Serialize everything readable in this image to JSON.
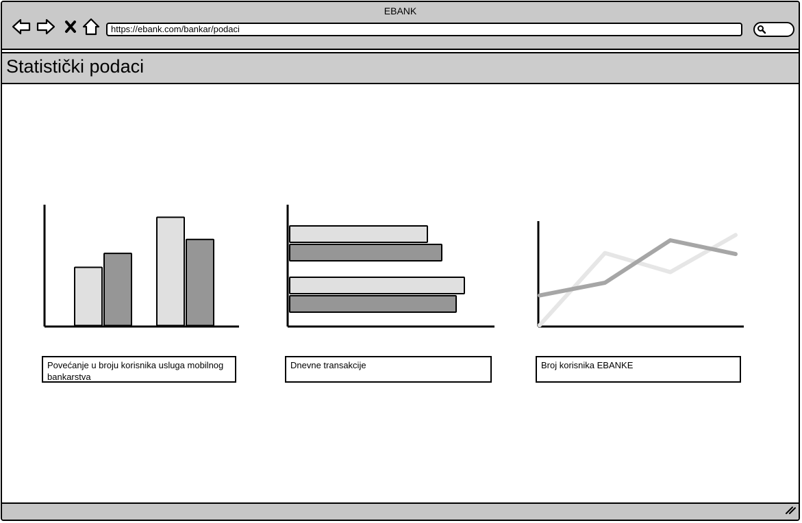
{
  "browser": {
    "window_title": "EBANK",
    "url": "https://ebank.com/bankar/podaci"
  },
  "icons": {
    "back": "back-arrow-icon",
    "forward": "forward-arrow-icon",
    "stop": "close-icon",
    "home": "home-icon",
    "search": "search-icon",
    "resize": "resize-grip-icon"
  },
  "page": {
    "title": "Statistički podaci"
  },
  "captions": [
    "Povećanje u broju korisnika usluga mobilnog bankarstva",
    "Dnevne transakcije",
    "Broj korisnika EBANKE"
  ],
  "colors": {
    "series_light": "#e0e0e0",
    "series_dark": "#969696",
    "line_light": "#e6e6e6",
    "line_dark": "#a6a6a6",
    "chrome": "#c9c9c9"
  },
  "chart_data": [
    {
      "type": "bar",
      "title": "",
      "categories": [
        "1",
        "2"
      ],
      "series": [
        {
          "values": [
            50,
            93
          ]
        },
        {
          "values": [
            62,
            74
          ]
        }
      ],
      "ylim": [
        0,
        100
      ],
      "grid": false
    },
    {
      "type": "bar",
      "orientation": "horizontal",
      "title": "",
      "categories": [
        "1",
        "2"
      ],
      "series": [
        {
          "values": [
            67,
            85
          ]
        },
        {
          "values": [
            74,
            81
          ]
        }
      ],
      "xlim": [
        0,
        100
      ],
      "grid": false
    },
    {
      "type": "line",
      "title": "",
      "x": [
        0,
        1,
        2,
        3
      ],
      "series": [
        {
          "values": [
            0,
            68,
            50,
            85
          ]
        },
        {
          "values": [
            28,
            40,
            80,
            67
          ]
        }
      ],
      "ylim": [
        0,
        100
      ],
      "grid": false
    }
  ]
}
